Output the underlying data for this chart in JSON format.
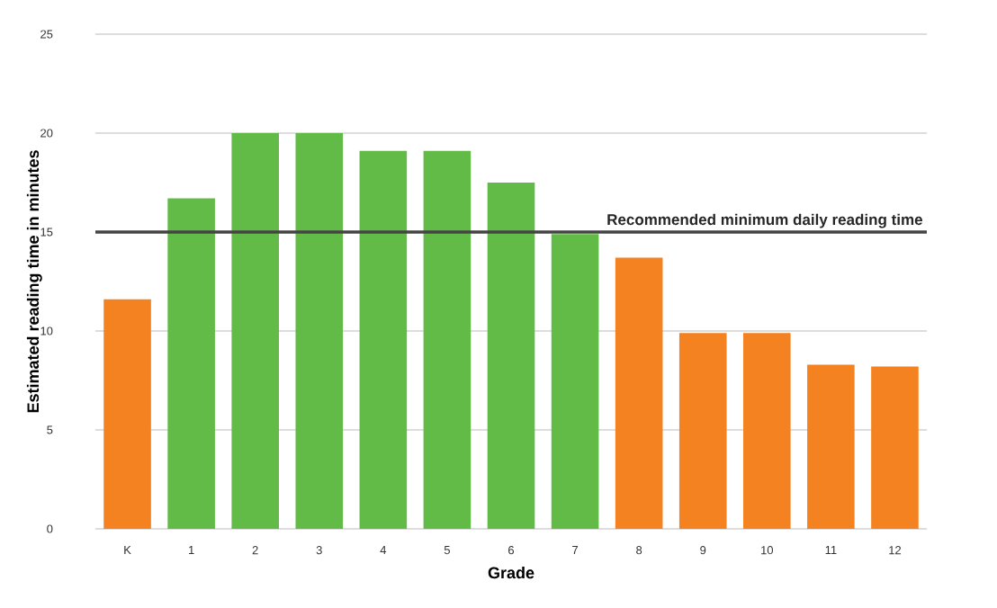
{
  "chart_data": {
    "type": "bar",
    "xlabel": "Grade",
    "ylabel": "Estimated reading time in minutes",
    "categories": [
      "K",
      "1",
      "2",
      "3",
      "4",
      "5",
      "6",
      "7",
      "8",
      "9",
      "10",
      "11",
      "12"
    ],
    "values": [
      11.6,
      16.7,
      20.0,
      20.0,
      19.1,
      19.1,
      17.5,
      14.9,
      13.7,
      9.9,
      9.9,
      8.3,
      8.2
    ],
    "colors": [
      "#f48220",
      "#62bb46",
      "#62bb46",
      "#62bb46",
      "#62bb46",
      "#62bb46",
      "#62bb46",
      "#62bb46",
      "#f48220",
      "#f48220",
      "#f48220",
      "#f48220",
      "#f48220"
    ],
    "ylim": [
      0,
      25
    ],
    "yticks": [
      0,
      5,
      10,
      15,
      20,
      25
    ],
    "grid": "y",
    "ref_lines": [
      {
        "axis": "y",
        "value": 15,
        "label": "Recommended minimum daily reading time",
        "color": "#444444"
      }
    ]
  }
}
